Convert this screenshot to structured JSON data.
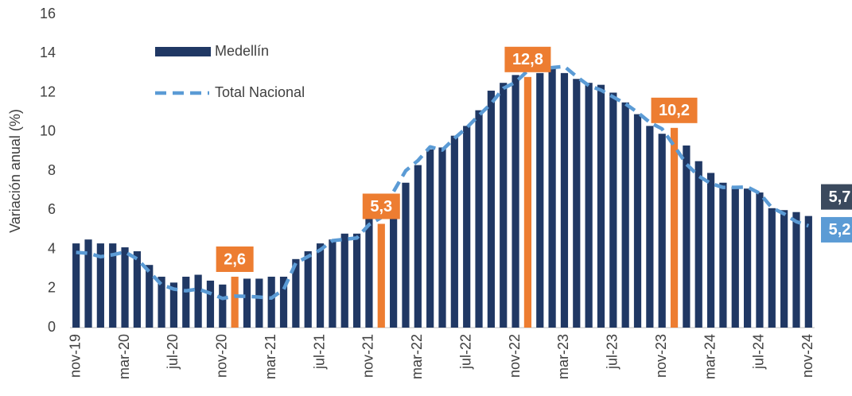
{
  "chart_data": {
    "type": "bar_line",
    "y_label": "Variación anual (%)",
    "categories": [
      "nov-19",
      null,
      null,
      null,
      "mar-20",
      null,
      null,
      null,
      "jul-20",
      null,
      null,
      null,
      "nov-20",
      null,
      null,
      null,
      "mar-21",
      null,
      null,
      null,
      "jul-21",
      null,
      null,
      null,
      "nov-21",
      null,
      null,
      null,
      "mar-22",
      null,
      null,
      null,
      "jul-22",
      null,
      null,
      null,
      "nov-22",
      null,
      null,
      null,
      "mar-23",
      null,
      null,
      null,
      "jul-23",
      null,
      null,
      null,
      "nov-23",
      null,
      null,
      null,
      "mar-24",
      null,
      null,
      null,
      "jul-24",
      null,
      null,
      null,
      "nov-24"
    ],
    "series": [
      {
        "name": "Medellín",
        "type": "bar",
        "color": "#203864",
        "highlight": {
          "color": "#ed7d31",
          "indices": [
            13,
            25,
            37,
            49
          ]
        },
        "values": [
          4.3,
          4.5,
          4.3,
          4.3,
          4.1,
          3.9,
          3.2,
          2.6,
          2.3,
          2.6,
          2.7,
          2.4,
          2.2,
          2.6,
          2.5,
          2.5,
          2.6,
          2.6,
          3.5,
          3.9,
          4.3,
          4.5,
          4.8,
          4.8,
          6.8,
          5.3,
          6.5,
          7.4,
          8.3,
          9.1,
          9.2,
          9.8,
          10.3,
          11.1,
          12.1,
          12.5,
          12.9,
          12.8,
          13.0,
          13.3,
          13.0,
          12.7,
          12.5,
          12.4,
          12.0,
          11.5,
          10.9,
          10.3,
          9.9,
          10.2,
          9.3,
          8.5,
          7.9,
          7.4,
          7.2,
          7.1,
          6.9,
          6.1,
          6.0,
          5.9,
          5.7
        ],
        "value_labels": [
          null,
          null,
          null,
          null,
          null,
          null,
          null,
          null,
          null,
          null,
          null,
          null,
          null,
          "2,6",
          null,
          null,
          null,
          null,
          null,
          null,
          null,
          null,
          null,
          null,
          null,
          "5,3",
          null,
          null,
          null,
          null,
          null,
          null,
          null,
          null,
          null,
          null,
          null,
          "12,8",
          null,
          null,
          null,
          null,
          null,
          null,
          null,
          null,
          null,
          null,
          null,
          "10,2",
          null,
          null,
          null,
          null,
          null,
          null,
          null,
          null,
          null,
          null,
          "5,7"
        ]
      },
      {
        "name": "Total Nacional",
        "type": "line",
        "color": "#5b9bd5",
        "dashed": true,
        "values": [
          3.84,
          3.8,
          3.62,
          3.72,
          3.86,
          3.51,
          2.85,
          2.19,
          1.97,
          1.88,
          1.97,
          1.75,
          1.49,
          1.61,
          1.6,
          1.56,
          1.51,
          1.95,
          3.3,
          3.63,
          3.97,
          4.44,
          4.51,
          4.58,
          5.26,
          5.62,
          6.94,
          8.01,
          8.53,
          9.23,
          9.07,
          9.67,
          10.21,
          10.84,
          11.44,
          12.22,
          12.53,
          13.12,
          13.25,
          13.28,
          13.34,
          12.82,
          12.36,
          12.13,
          11.78,
          11.43,
          10.99,
          10.48,
          10.15,
          9.28,
          8.35,
          7.74,
          7.36,
          7.16,
          7.16,
          7.18,
          6.86,
          6.12,
          5.81,
          5.41,
          5.2
        ],
        "value_labels": [
          null,
          null,
          null,
          null,
          null,
          null,
          null,
          null,
          null,
          null,
          null,
          null,
          null,
          null,
          null,
          null,
          null,
          null,
          null,
          null,
          null,
          null,
          null,
          null,
          null,
          null,
          null,
          null,
          null,
          null,
          null,
          null,
          null,
          null,
          null,
          null,
          null,
          null,
          null,
          null,
          null,
          null,
          null,
          null,
          null,
          null,
          null,
          null,
          null,
          null,
          null,
          null,
          null,
          null,
          null,
          null,
          null,
          null,
          null,
          null,
          "5,2"
        ]
      }
    ],
    "ylim": [
      0,
      16
    ],
    "yticks": [
      0,
      2,
      4,
      6,
      8,
      10,
      12,
      14,
      16
    ]
  }
}
